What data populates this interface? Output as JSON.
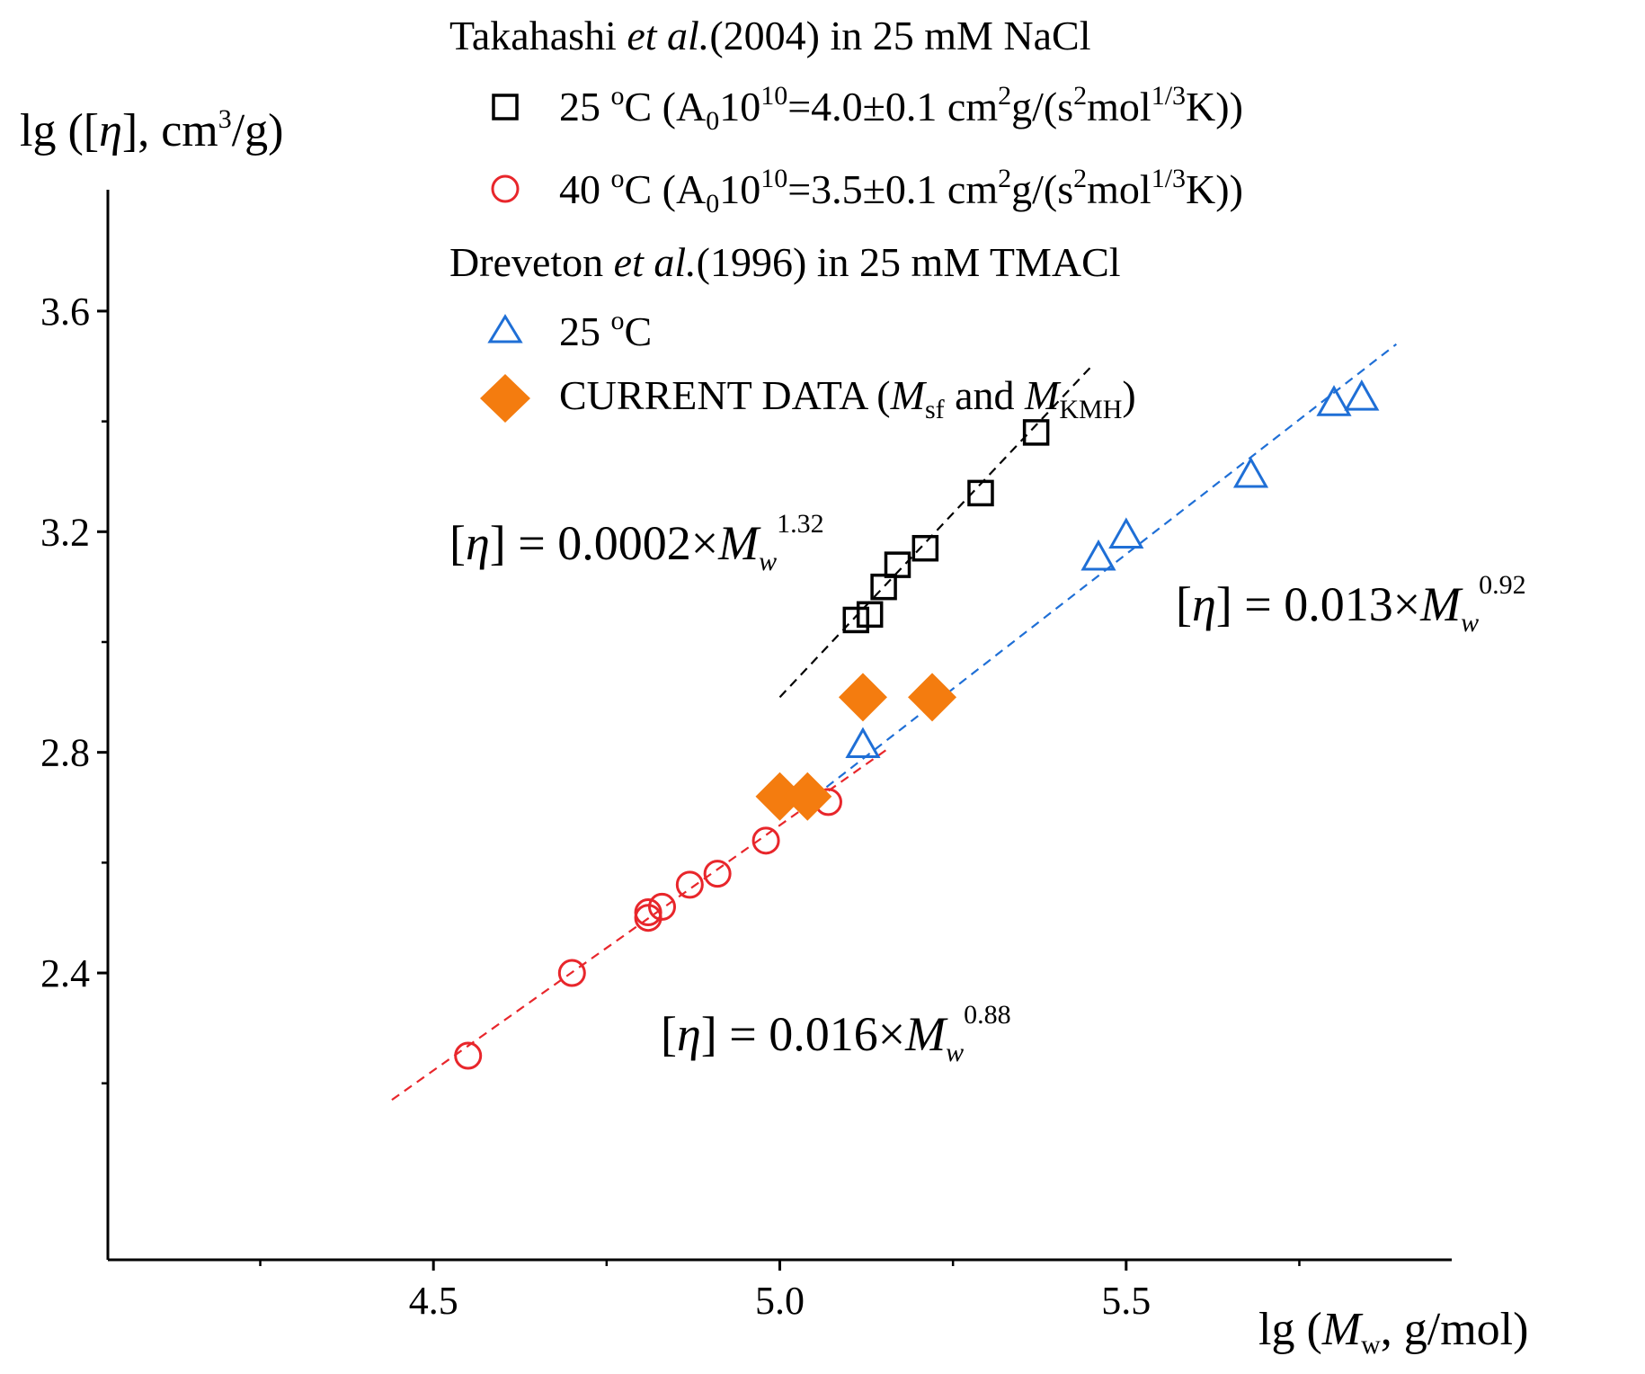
{
  "chart_data": {
    "type": "scatter",
    "xlabel": {
      "prefix": "lg (",
      "var": "M",
      "sub": "w",
      "suffix": ", g/mol)"
    },
    "ylabel": {
      "prefix": "lg ([",
      "var": "η",
      "mid": "], cm",
      "sup": "3",
      "suffix": "/g)"
    },
    "xlim": [
      4.03,
      5.97
    ],
    "ylim": [
      1.88,
      3.82
    ],
    "x_ticks": [
      4.5,
      5.0,
      5.5
    ],
    "x_tick_labels": [
      "4.5",
      "5.0",
      "5.5"
    ],
    "x_minor_ticks": [
      4.25,
      4.75,
      5.25,
      5.75
    ],
    "y_ticks": [
      2.4,
      2.8,
      3.2,
      3.6
    ],
    "y_tick_labels": [
      "2.4",
      "2.8",
      "3.2",
      "3.6"
    ],
    "y_minor_ticks": [
      2.2,
      2.6,
      3.0,
      3.4
    ],
    "legend": {
      "group1_title": {
        "author": "Takahashi ",
        "etal": "et al.",
        "rest": "(2004) in 25 mM NaCl"
      },
      "group2_title": {
        "author": "Dreveton ",
        "etal": "et al.",
        "rest": "(1996) in 25 mM TMACl"
      },
      "entries": [
        {
          "marker": "square",
          "color": "#000000",
          "t1": "25 ",
          "sup1": "o",
          "t2": "C (A",
          "sub1": "0",
          "t3": "10",
          "sup2": "10",
          "t4": "=4.0±0.1 cm",
          "sup3": "2",
          "t5": "g/(s",
          "sup4": "2",
          "t6": "mol",
          "sup5": "1/3",
          "t7": "K))"
        },
        {
          "marker": "circle",
          "color": "#e8262b",
          "t1": "40 ",
          "sup1": "o",
          "t2": "C (A",
          "sub1": "0",
          "t3": "10",
          "sup2": "10",
          "t4": "=3.5±0.1 cm",
          "sup3": "2",
          "t5": "g/(s",
          "sup4": "2",
          "t6": "mol",
          "sup5": "1/3",
          "t7": "K))"
        },
        {
          "marker": "triangle",
          "color": "#1f6fd6",
          "t1": "25 ",
          "sup1": "o",
          "t2": "C"
        },
        {
          "marker": "diamond",
          "color": "#f47c0f",
          "t1": "CURRENT DATA (",
          "v1": "M",
          "sub1": "sf",
          "t2": " and ",
          "v2": "M",
          "sub2": "KMH",
          "t3": ")"
        }
      ]
    },
    "series": [
      {
        "name": "Takahashi 25 °C",
        "marker": "square",
        "color": "#000000",
        "points": [
          [
            5.11,
            3.04
          ],
          [
            5.13,
            3.05
          ],
          [
            5.15,
            3.1
          ],
          [
            5.17,
            3.14
          ],
          [
            5.21,
            3.17
          ],
          [
            5.29,
            3.27
          ],
          [
            5.37,
            3.38
          ]
        ]
      },
      {
        "name": "Takahashi 40 °C",
        "marker": "circle",
        "color": "#e8262b",
        "points": [
          [
            4.55,
            2.25
          ],
          [
            4.7,
            2.4
          ],
          [
            4.81,
            2.51
          ],
          [
            4.83,
            2.52
          ],
          [
            4.87,
            2.56
          ],
          [
            4.91,
            2.58
          ],
          [
            4.98,
            2.64
          ],
          [
            5.07,
            2.71
          ],
          [
            4.81,
            2.5
          ]
        ]
      },
      {
        "name": "Dreveton 25 °C",
        "marker": "triangle",
        "color": "#1f6fd6",
        "points": [
          [
            5.12,
            2.81
          ],
          [
            5.46,
            3.15
          ],
          [
            5.5,
            3.19
          ],
          [
            5.68,
            3.3
          ],
          [
            5.8,
            3.43
          ],
          [
            5.84,
            3.44
          ]
        ]
      },
      {
        "name": "CURRENT DATA",
        "marker": "diamond",
        "color": "#f47c0f",
        "points": [
          [
            5.0,
            2.72
          ],
          [
            5.04,
            2.72
          ],
          [
            5.12,
            2.9
          ],
          [
            5.22,
            2.9
          ]
        ]
      }
    ],
    "fit_lines": [
      {
        "color": "#000000",
        "x": [
          5.0,
          5.45
        ],
        "y": [
          2.9,
          3.5
        ]
      },
      {
        "color": "#e8262b",
        "x": [
          4.44,
          5.16
        ],
        "y": [
          2.17,
          2.81
        ]
      },
      {
        "color": "#1f6fd6",
        "x": [
          5.05,
          5.89
        ],
        "y": [
          2.72,
          3.54
        ]
      }
    ],
    "equations": [
      {
        "id": "eq-black",
        "pre": "[",
        "sym": "η",
        "mid": "] = 0.0002×",
        "var": "M",
        "sub": "w",
        "sup": "1.32"
      },
      {
        "id": "eq-blue",
        "pre": "[",
        "sym": "η",
        "mid": "] = 0.013×",
        "var": "M",
        "sub": "w",
        "sup": "0.92"
      },
      {
        "id": "eq-red",
        "pre": "[",
        "sym": "η",
        "mid": "] = 0.016×",
        "var": "M",
        "sub": "w",
        "sup": "0.88"
      }
    ]
  }
}
